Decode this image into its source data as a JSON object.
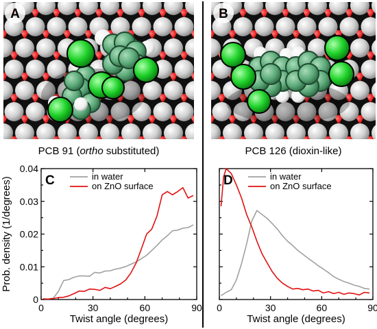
{
  "panels": {
    "A": {
      "letter": "A",
      "caption_pre": "PCB 91 (",
      "caption_em": "ortho",
      "caption_post": " substituted)"
    },
    "B": {
      "letter": "B",
      "caption": "PCB 126 (dioxin-like)"
    }
  },
  "colors": {
    "water": "#a0a0a0",
    "surface": "#e01010",
    "oxygen": "#e81e1e",
    "zinc": "#d4d4d4",
    "carbon": "#5aa878",
    "chlorine": "#1fd22a",
    "hydrogen": "#ffffff"
  },
  "chart_data": [
    {
      "panel": "C",
      "type": "line",
      "xlabel": "Twist angle (degrees)",
      "ylabel": "Prob. density (1/degrees)",
      "xlim": [
        0,
        90
      ],
      "ylim": [
        0,
        0.04
      ],
      "xticks": [
        0,
        30,
        60,
        90
      ],
      "yticks": [
        0,
        0.01,
        0.02,
        0.03,
        0.04
      ],
      "ytick_labels": [
        "0",
        "0.01",
        "0.02",
        "0.03",
        "0.04"
      ],
      "legend_position": "top-left",
      "series": [
        {
          "name": "in water",
          "color": "#a0a0a0",
          "x": [
            1,
            4,
            7,
            10,
            13,
            16,
            19,
            22,
            25,
            28,
            31,
            34,
            37,
            40,
            43,
            46,
            49,
            52,
            55,
            58,
            61,
            64,
            67,
            70,
            73,
            76,
            79,
            82,
            85,
            88
          ],
          "y": [
            0.0002,
            0.0002,
            0.0004,
            0.0025,
            0.0058,
            0.0061,
            0.0068,
            0.0072,
            0.0072,
            0.0071,
            0.0083,
            0.0081,
            0.0087,
            0.0088,
            0.0093,
            0.0096,
            0.0101,
            0.0108,
            0.0115,
            0.0125,
            0.0135,
            0.015,
            0.0165,
            0.0182,
            0.0195,
            0.021,
            0.0212,
            0.0218,
            0.022,
            0.0228
          ]
        },
        {
          "name": "on ZnO surface",
          "color": "#e01010",
          "x": [
            1,
            4,
            7,
            10,
            13,
            16,
            19,
            22,
            25,
            28,
            31,
            34,
            37,
            40,
            43,
            46,
            49,
            52,
            55,
            58,
            61,
            64,
            67,
            70,
            73,
            76,
            79,
            82,
            85,
            88
          ],
          "y": [
            0.0002,
            0.0001,
            0.0003,
            0.0006,
            0.0007,
            0.0011,
            0.0018,
            0.0026,
            0.0025,
            0.0032,
            0.0031,
            0.0028,
            0.0037,
            0.0033,
            0.004,
            0.0048,
            0.006,
            0.0082,
            0.0112,
            0.0155,
            0.02,
            0.0215,
            0.0255,
            0.032,
            0.033,
            0.032,
            0.033,
            0.0342,
            0.031,
            0.0318
          ]
        }
      ]
    },
    {
      "panel": "D",
      "type": "line",
      "xlabel": "Twist angle (degrees)",
      "ylabel": "",
      "xlim": [
        0,
        90
      ],
      "ylim": [
        0,
        0.04
      ],
      "xticks": [
        0,
        30,
        60,
        90
      ],
      "yticks": [
        0,
        0.01,
        0.02,
        0.03,
        0.04
      ],
      "legend_position": "top-left",
      "series": [
        {
          "name": "in water",
          "color": "#a0a0a0",
          "x": [
            1,
            4,
            7,
            10,
            13,
            16,
            19,
            22,
            25,
            28,
            31,
            34,
            37,
            40,
            43,
            46,
            49,
            52,
            55,
            58,
            61,
            64,
            67,
            70,
            73,
            76,
            79,
            82,
            85,
            88
          ],
          "y": [
            0.0012,
            0.0022,
            0.003,
            0.006,
            0.011,
            0.017,
            0.024,
            0.0272,
            0.026,
            0.0248,
            0.0232,
            0.0215,
            0.0195,
            0.0178,
            0.0165,
            0.015,
            0.0138,
            0.0126,
            0.0115,
            0.0103,
            0.0093,
            0.0082,
            0.007,
            0.0062,
            0.0055,
            0.005,
            0.0044,
            0.004,
            0.0034,
            0.0032
          ]
        },
        {
          "name": "on ZnO surface",
          "color": "#e01010",
          "x": [
            1,
            2.5,
            4,
            7,
            10,
            13,
            16,
            19,
            22,
            25,
            28,
            31,
            34,
            37,
            40,
            43,
            46,
            49,
            52,
            55,
            58,
            61,
            64,
            67,
            70,
            73,
            76,
            79,
            82,
            85,
            88
          ],
          "y": [
            0.0285,
            0.0375,
            0.04,
            0.0385,
            0.035,
            0.031,
            0.026,
            0.0222,
            0.0178,
            0.014,
            0.0112,
            0.0085,
            0.0065,
            0.005,
            0.004,
            0.0032,
            0.0034,
            0.003,
            0.0032,
            0.0026,
            0.0028,
            0.002,
            0.0024,
            0.0018,
            0.0022,
            0.0016,
            0.002,
            0.0018,
            0.0014,
            0.0022,
            0.002
          ]
        }
      ]
    }
  ]
}
